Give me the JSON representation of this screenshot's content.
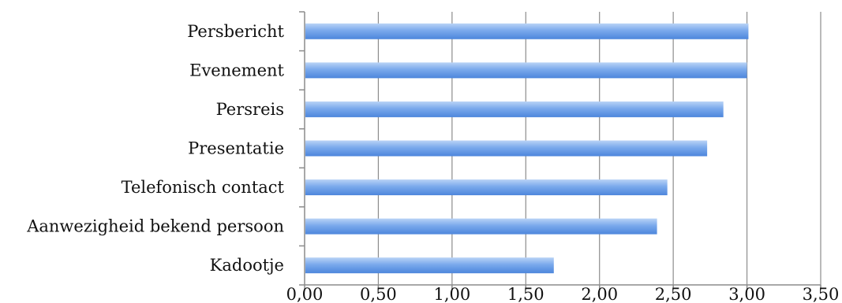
{
  "chart_data": {
    "type": "bar",
    "orientation": "horizontal",
    "categories": [
      "Persbericht",
      "Evenement",
      "Persreis",
      "Presentatie",
      "Telefonisch contact",
      "Aanwezigheid bekend persoon",
      "Kadootje"
    ],
    "values": [
      3.01,
      3.0,
      2.84,
      2.73,
      2.46,
      2.39,
      1.69
    ],
    "xlim": [
      0,
      3.5
    ],
    "xticks": [
      "0,00",
      "0,50",
      "1,00",
      "1,50",
      "2,00",
      "2,50",
      "3,00",
      "3,50"
    ],
    "tick_values": [
      0,
      0.5,
      1,
      1.5,
      2,
      2.5,
      3,
      3.5
    ],
    "title": "",
    "xlabel": "",
    "ylabel": "",
    "grid": "vertical",
    "legend": "none",
    "colors": {
      "bar_top": "#b9d3f6",
      "bar_mid": "#7aa9ec",
      "bar_bottom": "#4d86dc",
      "grid": "#8c8c8c",
      "axis": "#8c8c8c"
    }
  }
}
